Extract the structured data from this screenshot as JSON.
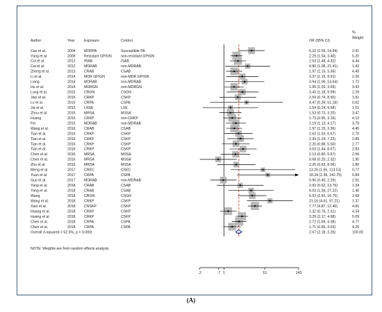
{
  "caption": "(A)",
  "chart_data": {
    "type": "forest",
    "columns": {
      "author": "Author",
      "year": "Year",
      "exposure": "Exposure",
      "control": "Control",
      "or": "OR (95% CI)",
      "weight_line1": "%",
      "weight_line2": "Weight"
    },
    "scale": "log",
    "x_ticks": [
      {
        "label": ".2",
        "value": 0.2
      },
      {
        "label": ".7",
        "value": 0.7
      },
      {
        "label": "1",
        "value": 1
      },
      {
        "label": "15",
        "value": 15
      },
      {
        "label": "143",
        "value": 143
      }
    ],
    "xlim": [
      0.07,
      143
    ],
    "null_line": 1,
    "pooled_line": 2.67,
    "rows": [
      {
        "author": "Cao et al.",
        "year": "2004",
        "exposure": "MDRPA",
        "control": "Susceptible PA",
        "or": 6.22,
        "lo": 2.59,
        "hi": 14.94,
        "ci_text": "6.22 (2.59, 14.94)",
        "weight": "2.91"
      },
      {
        "author": "Yang et al.",
        "year": "2009",
        "exposure": "Resistant GP/GN",
        "control": "non-resistant GP/GN",
        "or": 2.29,
        "lo": 1.54,
        "hi": 3.4,
        "ci_text": "2.29 (1.54, 3.40)",
        "weight": "5.20"
      },
      {
        "author": "Cui et al.",
        "year": "2012",
        "exposure": "IRAB",
        "control": "ISAB",
        "or": 2.53,
        "lo": 1.48,
        "hi": 4.32,
        "ci_text": "2.53 (1.48, 4.32)",
        "weight": "4.44"
      },
      {
        "author": "Cai et al.",
        "year": "2012",
        "exposure": "MDRAB",
        "control": "non-MDRAB",
        "or": 4.8,
        "lo": 1.08,
        "hi": 21.41,
        "ci_text": "4.80 (1.08, 21.41)",
        "weight": "1.42"
      },
      {
        "author": "Zheng et al.",
        "year": "2013",
        "exposure": "CRAB",
        "control": "CSAB",
        "or": 1.97,
        "lo": 1.15,
        "hi": 3.36,
        "ci_text": "1.97 (1.15, 3.36)",
        "weight": "4.45"
      },
      {
        "author": "Li et al.",
        "year": "2014",
        "exposure": "MDR GP/GN",
        "control": "non-MDR GP/GN",
        "or": 3.37,
        "lo": 1.15,
        "hi": 9.91,
        "ci_text": "3.37 (1.15, 9.91)",
        "weight": "2.26"
      },
      {
        "author": "Liang",
        "year": "2014",
        "exposure": "MDRAB",
        "control": "non-MDRAB",
        "or": 3.94,
        "lo": 1.06,
        "hi": 14.64,
        "ci_text": "3.94 (1.06, 14.64)",
        "weight": "1.72"
      },
      {
        "author": "Hu et al.",
        "year": "2014",
        "exposure": "MDRGN",
        "control": "non-MDRGN",
        "or": 1.95,
        "lo": 1.03,
        "hi": 3.69,
        "ci_text": "1.95 (1.03, 3.69)",
        "weight": "3.93"
      },
      {
        "author": "Long et al.",
        "year": "2015",
        "exposure": "CRGN",
        "control": "CSGN",
        "or": 3.43,
        "lo": 1.18,
        "hi": 9.99,
        "ci_text": "3.43 (1.18, 9.99)",
        "weight": "2.29"
      },
      {
        "author": "Jiao et al.",
        "year": "2015",
        "exposure": "CRKP",
        "control": "CSKP",
        "or": 2.5,
        "lo": 0.74,
        "hi": 8.5,
        "ci_text": "2.50 (0.74, 8.50)",
        "weight": "1.91"
      },
      {
        "author": "Lv et al.",
        "year": "2015",
        "exposure": "CRPA",
        "control": "CSPA",
        "or": 4.47,
        "lo": 0.39,
        "hi": 51.18,
        "ci_text": "4.47 (0.39, 51.18)",
        "weight": "0.62"
      },
      {
        "author": "Jia et al.",
        "year": "2015",
        "exposure": "LNSE",
        "control": "LSE",
        "or": 1.54,
        "lo": 0.24,
        "hi": 9.68,
        "ci_text": "1.54 (0.24, 9.68)",
        "weight": "1.01"
      },
      {
        "author": "Zhou et al.",
        "year": "2015",
        "exposure": "MRSA",
        "control": "MSSA",
        "or": 1.53,
        "lo": 0.73,
        "hi": 3.2,
        "ci_text": "1.53 (0.73, 3.20)",
        "weight": "3.47"
      },
      {
        "author": "Huang",
        "year": "2015",
        "exposure": "CRKP",
        "control": "non-CRKP",
        "or": 1.73,
        "lo": 0.95,
        "hi": 3.16,
        "ci_text": "1.73 (0.95, 3.16)",
        "weight": "4.12"
      },
      {
        "author": "Fei",
        "year": "2015",
        "exposure": "MDRAB",
        "control": "non-MDRAB",
        "or": 2.19,
        "lo": 1.13,
        "hi": 4.27,
        "ci_text": "2.19 (1.13, 4.27)",
        "weight": "3.79"
      },
      {
        "author": "Wang et al.",
        "year": "2016",
        "exposure": "CRAB",
        "control": "CSAB",
        "or": 1.97,
        "lo": 1.15,
        "hi": 3.36,
        "ci_text": "1.97 (1.15, 3.36)",
        "weight": "4.45"
      },
      {
        "author": "Tian et al.",
        "year": "2016",
        "exposure": "CRKP",
        "control": "CSKP",
        "or": 2.62,
        "lo": 1.03,
        "hi": 6.67,
        "ci_text": "2.62 (1.03, 6.67)",
        "weight": "2.70"
      },
      {
        "author": "Tian et al.",
        "year": "2016",
        "exposure": "CRKP",
        "control": "CSKP",
        "or": 2.99,
        "lo": 1.24,
        "hi": 7.22,
        "ci_text": "2.99 (1.24, 7.22)",
        "weight": "2.89"
      },
      {
        "author": "Tian et al.",
        "year": "2016",
        "exposure": "CRKP",
        "control": "CSKP",
        "or": 2.2,
        "lo": 0.88,
        "hi": 5.5,
        "ci_text": "2.20 (0.88, 5.50)",
        "weight": "2.77"
      },
      {
        "author": "Tian et al.",
        "year": "2016",
        "exposure": "CRKP",
        "control": "CSKP",
        "or": 3.53,
        "lo": 1.44,
        "hi": 8.67,
        "ci_text": "3.53 (1.44, 8.67)",
        "weight": "2.83"
      },
      {
        "author": "Chen et al.",
        "year": "2016",
        "exposure": "MRSA",
        "control": "MSSA",
        "or": 2.13,
        "lo": 0.8,
        "hi": 5.67,
        "ci_text": "2.13 (0.80, 5.67)",
        "weight": "2.56"
      },
      {
        "author": "Chen et al.",
        "year": "2016",
        "exposure": "MRSA",
        "control": "MSSA",
        "or": 0.68,
        "lo": 0.2,
        "hi": 2.32,
        "ci_text": "0.68 (0.20, 2.32)",
        "weight": "1.90"
      },
      {
        "author": "Zhu et al.",
        "year": "2016",
        "exposure": "MRSA",
        "control": "MSSA",
        "or": 2.25,
        "lo": 0.63,
        "hi": 8.06,
        "ci_text": "2.25 (0.63, 8.06)",
        "weight": "1.80"
      },
      {
        "author": "Meng et al.",
        "year": "2017",
        "exposure": "CREC",
        "control": "CSEC",
        "or": 13.26,
        "lo": 1.55,
        "hi": 113.51,
        "ci_text": "13.26 (1.55, 113.51)",
        "weight": "0.77"
      },
      {
        "author": "Yuan et al.",
        "year": "2017",
        "exposure": "CRPA",
        "control": "CSPA",
        "or": 18.34,
        "lo": 2.36,
        "hi": 142.75,
        "ci_text": "18.34 (2.36, 142.75)",
        "weight": "0.84",
        "arrow": true
      },
      {
        "author": "Guo et al.",
        "year": "2017",
        "exposure": "MDRAB",
        "control": "non-MDRAB",
        "or": 0.95,
        "lo": 0.4,
        "hi": 2.29,
        "ci_text": "0.95 (0.40, 2.29)",
        "weight": "2.91"
      },
      {
        "author": "Yang et al.",
        "year": "2018",
        "exposure": "CRAB",
        "control": "CSAB",
        "or": 2.93,
        "lo": 0.62,
        "hi": 13.75,
        "ci_text": "2.93 (0.62, 13.75)",
        "weight": "1.34"
      },
      {
        "author": "Yang et al.",
        "year": "2018",
        "exposure": "CRAB",
        "control": "CSAB",
        "or": 6.03,
        "lo": 1.34,
        "hi": 27.22,
        "ci_text": "6.03 (1.34, 27.22)",
        "weight": "1.40"
      },
      {
        "author": "Wang",
        "year": "2018",
        "exposure": "CRGN",
        "control": "CSGN",
        "or": 6.53,
        "lo": 2.55,
        "hi": 16.75,
        "ci_text": "6.53 (2.55, 16.75)",
        "weight": "2.68"
      },
      {
        "author": "Wang et al.",
        "year": "2018",
        "exposure": "CRKP",
        "control": "CSKP",
        "or": 21.16,
        "lo": 4.61,
        "hi": 97.21,
        "ci_text": "21.16 (4.61, 97.21)",
        "weight": "1.37"
      },
      {
        "author": "Xiao et al.",
        "year": "2018",
        "exposure": "CNSKP",
        "control": "CSKP",
        "or": 7.77,
        "lo": 4.87,
        "hi": 12.4,
        "ci_text": "7.77 (4.87, 12.40)",
        "weight": "4.81"
      },
      {
        "author": "Huang et al.",
        "year": "2018",
        "exposure": "CRKP",
        "control": "CSKP",
        "or": 1.32,
        "lo": 0.76,
        "hi": 2.31,
        "ci_text": "1.32 (0.76, 2.31)",
        "weight": "4.34"
      },
      {
        "author": "Huang et al.",
        "year": "2018",
        "exposure": "CRKP",
        "control": "CSKP",
        "or": 3.29,
        "lo": 2.17,
        "hi": 4.98,
        "ci_text": "3.29 (2.17, 4.98)",
        "weight": "5.09"
      },
      {
        "author": "Chen et al.",
        "year": "2018",
        "exposure": "CRPA",
        "control": "CSPA",
        "or": 2.72,
        "lo": 1.69,
        "hi": 4.38,
        "ci_text": "2.72 (1.69, 4.38)",
        "weight": "4.77"
      },
      {
        "author": "Chen et al.",
        "year": "2018",
        "exposure": "CRPA",
        "control": "CSPA",
        "or": 1.71,
        "lo": 0.96,
        "hi": 3.03,
        "ci_text": "1.71 (0.96, 3.03)",
        "weight": "4.26"
      }
    ],
    "overall": {
      "label": "Overall  (I-squared = 52.5%, p = 0.000)",
      "or": 2.67,
      "lo": 2.18,
      "hi": 3.26,
      "ci_text": "2.67 (2.18, 3.26)",
      "weight": "100.00"
    },
    "note": "NOTE: Weights are from random effects analysis",
    "colors": {
      "box": "#b8b8b8",
      "ci": "#000000",
      "diamond": "#1a2f8a",
      "pooled_line": "#c0392b",
      "frame": "#3a5a7a"
    }
  }
}
